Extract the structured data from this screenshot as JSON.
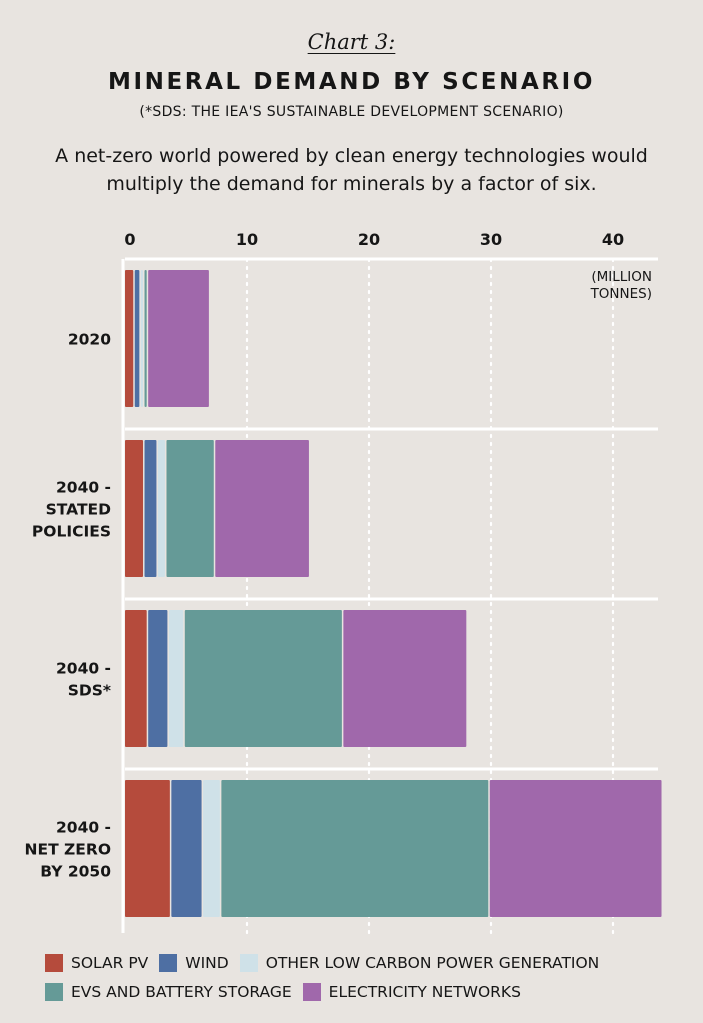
{
  "header": {
    "chart_label": "Chart 3:",
    "title": "MINERAL DEMAND BY SCENARIO",
    "subtitle": "(*SDS: THE IEA'S SUSTAINABLE DEVELOPMENT SCENARIO)",
    "description": "A net-zero world powered by clean energy technologies would multiply the demand for minerals by a factor of six."
  },
  "chart_data": {
    "type": "bar",
    "orientation": "horizontal",
    "stacked": true,
    "unit_label": "(MILLION TONNES)",
    "categories": [
      "2020",
      "2040 - STATED POLICIES",
      "2040 - SDS*",
      "2040 - NET ZERO BY 2050"
    ],
    "category_lines": [
      [
        "2020"
      ],
      [
        "2040 -",
        "STATED",
        "POLICIES"
      ],
      [
        "2040 -",
        "SDS*"
      ],
      [
        "2040 -",
        "NET ZERO",
        "BY 2050"
      ]
    ],
    "series": [
      {
        "name": "SOLAR PV",
        "color": "#b54b3c",
        "values": [
          0.8,
          1.6,
          1.9,
          3.8
        ]
      },
      {
        "name": "WIND",
        "color": "#4e6fa3",
        "values": [
          0.5,
          1.1,
          1.7,
          2.6
        ]
      },
      {
        "name": "OTHER LOW CARBON POWER GENERATION",
        "color": "#cfe1e8",
        "values": [
          0.3,
          0.7,
          1.3,
          1.5
        ]
      },
      {
        "name": "EVS AND BATTERY STORAGE",
        "color": "#659a97",
        "values": [
          0.3,
          4.0,
          13.0,
          22.0
        ]
      },
      {
        "name": "ELECTRICITY NETWORKS",
        "color": "#a068ab",
        "values": [
          5.1,
          7.8,
          10.2,
          14.2
        ]
      }
    ],
    "xlim": [
      0,
      44
    ],
    "xticks": [
      0,
      10,
      20,
      30,
      40
    ],
    "grid": true,
    "legend_position": "bottom"
  }
}
